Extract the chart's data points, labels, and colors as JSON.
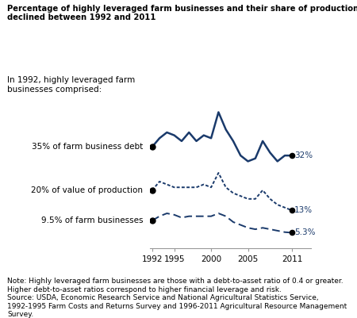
{
  "title_line1": "Percentage of highly leveraged farm businesses and their share of production and debt",
  "title_line2": "declined between 1992 and 2011",
  "subtitle_text": "In 1992, highly leveraged farm\nbusinesses comprised:",
  "line_color": "#1a3a6b",
  "background_color": "#ffffff",
  "note_text": "Note: Highly leveraged farm businesses are those with a debt-to-asset ratio of 0.4 or greater.\nHigher debt-to-asset ratios correspond to higher financial leverage and risk.\nSource: USDA, Economic Research Service and National Agricultural Statistics Service,\n1992-1995 Farm Costs and Returns Survey and 1996-2011 Agricultural Resource Management\nSurvey.",
  "years": [
    1992,
    1993,
    1994,
    1995,
    1996,
    1997,
    1998,
    1999,
    2000,
    2001,
    2002,
    2003,
    2004,
    2005,
    2006,
    2007,
    2008,
    2009,
    2010,
    2011
  ],
  "debt": [
    35,
    38,
    40,
    39,
    37,
    40,
    37,
    39,
    38,
    47,
    41,
    37,
    32,
    30,
    31,
    37,
    33,
    30,
    32,
    32
  ],
  "production": [
    20,
    23,
    22,
    21,
    21,
    21,
    21,
    22,
    21,
    26,
    21,
    19,
    18,
    17,
    17,
    20,
    17,
    15,
    14,
    13
  ],
  "businesses": [
    9.5,
    11,
    12,
    11.5,
    10.5,
    11,
    11,
    11,
    11,
    12,
    11,
    9,
    8,
    7,
    6.5,
    7,
    6.5,
    6,
    5.5,
    5.3
  ],
  "label_debt": "35% of farm business debt",
  "label_production": "20% of value of production",
  "label_businesses": "9.5% of farm businesses",
  "end_label_debt": "32%",
  "end_label_production": "13%",
  "end_label_businesses": "5.3%",
  "ylim_min": 0,
  "ylim_max": 55,
  "xlim_min": 1992,
  "xlim_max": 2011,
  "xticks": [
    1992,
    1995,
    2000,
    2005,
    2011
  ]
}
